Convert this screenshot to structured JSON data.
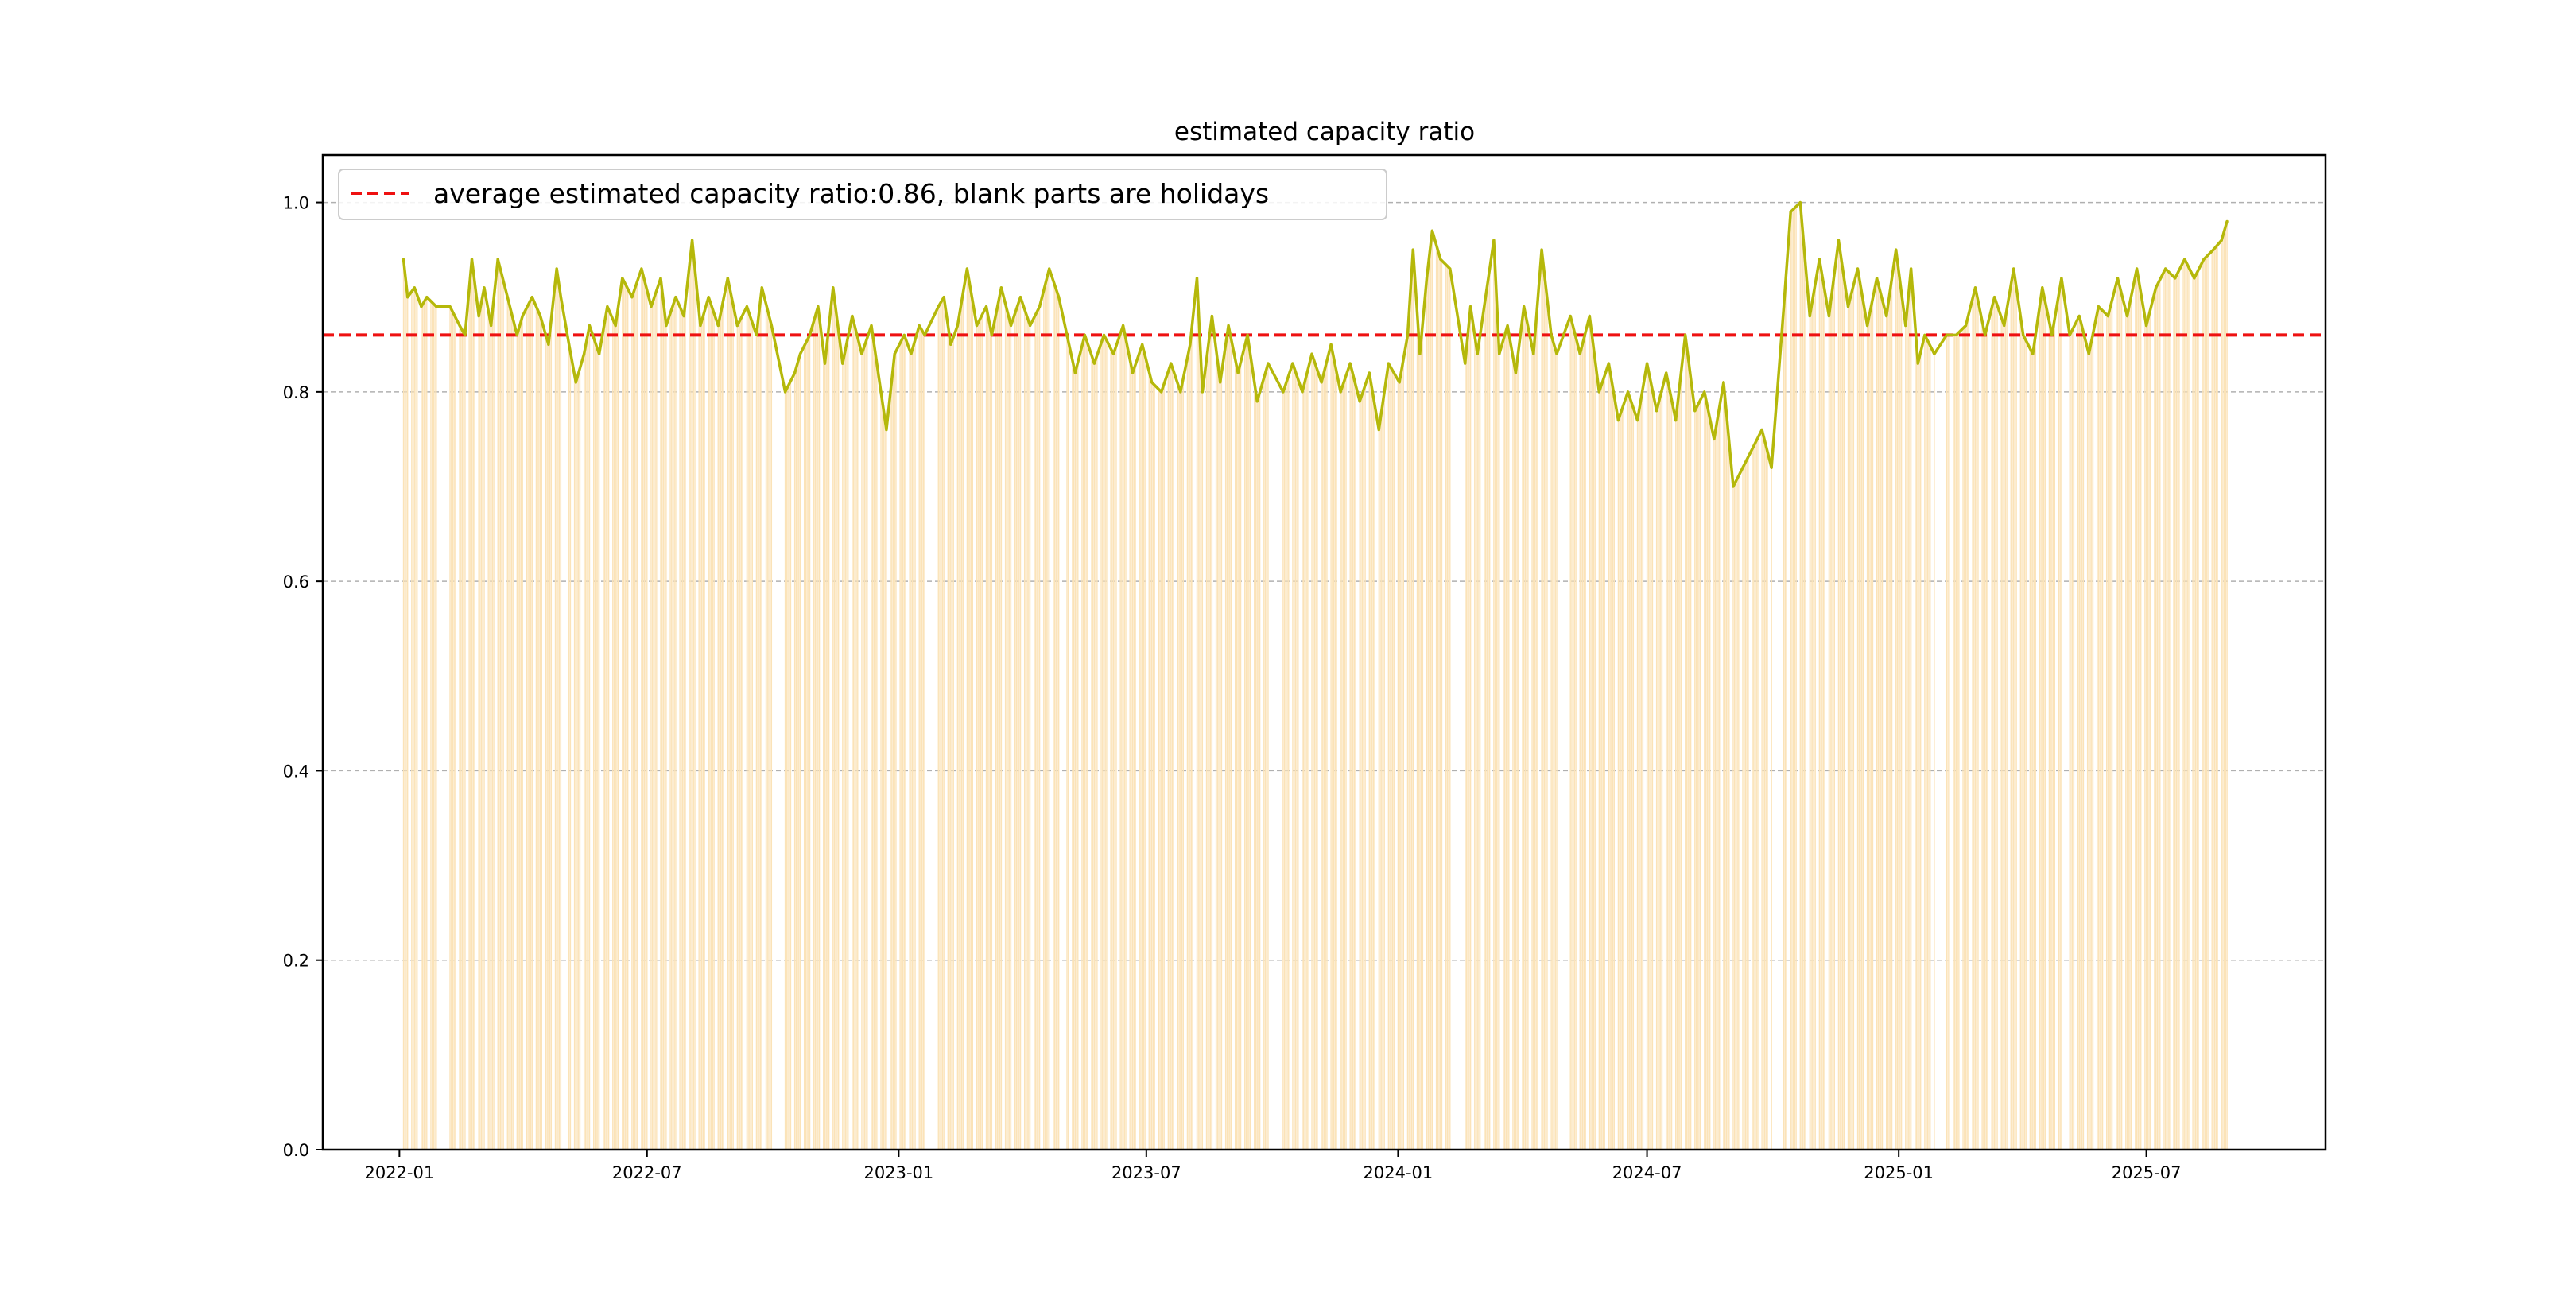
{
  "chart_data": {
    "type": "bar",
    "title": "estimated capacity ratio",
    "xlabel": "",
    "ylabel": "",
    "ylim": [
      0.0,
      1.05
    ],
    "xlim": [
      "2021-11-06",
      "2025-11-09"
    ],
    "grid": {
      "y": true,
      "x": false,
      "style": "dashed"
    },
    "legend_position": "top-left",
    "legend_text": "average estimated capacity ratio:0.86, blank parts are holidays",
    "y_ticks": [
      "0.0",
      "0.2",
      "0.4",
      "0.6",
      "0.8",
      "1.0"
    ],
    "x_ticks": [
      "2022-01",
      "2022-07",
      "2023-01",
      "2023-07",
      "2024-01",
      "2024-07",
      "2025-01",
      "2025-07"
    ],
    "date_range": {
      "start": "2022-01-04",
      "end": "2025-08-29"
    },
    "holiday_gaps": [
      {
        "from": "2022-01-29",
        "to": "2022-02-06"
      },
      {
        "from": "2022-04-30",
        "to": "2022-05-04"
      },
      {
        "from": "2022-10-01",
        "to": "2022-10-09"
      },
      {
        "from": "2023-01-21",
        "to": "2023-01-29"
      },
      {
        "from": "2023-04-29",
        "to": "2023-05-03"
      },
      {
        "from": "2023-09-29",
        "to": "2023-10-08"
      },
      {
        "from": "2024-02-09",
        "to": "2024-02-18"
      },
      {
        "from": "2024-04-29",
        "to": "2024-05-05"
      },
      {
        "from": "2024-10-01",
        "to": "2024-10-08"
      },
      {
        "from": "2025-01-28",
        "to": "2025-02-04"
      },
      {
        "from": "2025-05-01",
        "to": "2025-05-05"
      }
    ],
    "series": [
      {
        "type": "bar",
        "color": "#fbe3b8",
        "values_note": "daily bars each equal to the line value on trading days; absent on holidays"
      },
      {
        "type": "line",
        "color": "#b5b80a",
        "points": [
          [
            "2022-01-04",
            0.94
          ],
          [
            "2022-01-07",
            0.9
          ],
          [
            "2022-01-12",
            0.91
          ],
          [
            "2022-01-17",
            0.89
          ],
          [
            "2022-01-21",
            0.9
          ],
          [
            "2022-01-28",
            0.89
          ],
          [
            "2022-02-07",
            0.89
          ],
          [
            "2022-02-14",
            0.87
          ],
          [
            "2022-02-18",
            0.86
          ],
          [
            "2022-02-23",
            0.94
          ],
          [
            "2022-02-28",
            0.88
          ],
          [
            "2022-03-04",
            0.91
          ],
          [
            "2022-03-09",
            0.87
          ],
          [
            "2022-03-14",
            0.94
          ],
          [
            "2022-03-21",
            0.9
          ],
          [
            "2022-03-28",
            0.86
          ],
          [
            "2022-04-01",
            0.88
          ],
          [
            "2022-04-08",
            0.9
          ],
          [
            "2022-04-14",
            0.88
          ],
          [
            "2022-04-20",
            0.85
          ],
          [
            "2022-04-26",
            0.93
          ],
          [
            "2022-04-29",
            0.9
          ],
          [
            "2022-05-05",
            0.85
          ],
          [
            "2022-05-10",
            0.81
          ],
          [
            "2022-05-16",
            0.84
          ],
          [
            "2022-05-20",
            0.87
          ],
          [
            "2022-05-27",
            0.84
          ],
          [
            "2022-06-02",
            0.89
          ],
          [
            "2022-06-08",
            0.87
          ],
          [
            "2022-06-13",
            0.92
          ],
          [
            "2022-06-20",
            0.9
          ],
          [
            "2022-06-27",
            0.93
          ],
          [
            "2022-07-04",
            0.89
          ],
          [
            "2022-07-11",
            0.92
          ],
          [
            "2022-07-15",
            0.87
          ],
          [
            "2022-07-22",
            0.9
          ],
          [
            "2022-07-28",
            0.88
          ],
          [
            "2022-08-03",
            0.96
          ],
          [
            "2022-08-09",
            0.87
          ],
          [
            "2022-08-15",
            0.9
          ],
          [
            "2022-08-22",
            0.87
          ],
          [
            "2022-08-29",
            0.92
          ],
          [
            "2022-09-05",
            0.87
          ],
          [
            "2022-09-12",
            0.89
          ],
          [
            "2022-09-19",
            0.86
          ],
          [
            "2022-09-23",
            0.91
          ],
          [
            "2022-09-30",
            0.87
          ],
          [
            "2022-10-10",
            0.8
          ],
          [
            "2022-10-17",
            0.82
          ],
          [
            "2022-10-21",
            0.84
          ],
          [
            "2022-10-28",
            0.86
          ],
          [
            "2022-11-03",
            0.89
          ],
          [
            "2022-11-08",
            0.83
          ],
          [
            "2022-11-14",
            0.91
          ],
          [
            "2022-11-21",
            0.83
          ],
          [
            "2022-11-28",
            0.88
          ],
          [
            "2022-12-05",
            0.84
          ],
          [
            "2022-12-12",
            0.87
          ],
          [
            "2022-12-19",
            0.8
          ],
          [
            "2022-12-23",
            0.76
          ],
          [
            "2022-12-29",
            0.84
          ],
          [
            "2023-01-05",
            0.86
          ],
          [
            "2023-01-10",
            0.84
          ],
          [
            "2023-01-16",
            0.87
          ],
          [
            "2023-01-20",
            0.86
          ],
          [
            "2023-01-30",
            0.89
          ],
          [
            "2023-02-03",
            0.9
          ],
          [
            "2023-02-08",
            0.85
          ],
          [
            "2023-02-13",
            0.87
          ],
          [
            "2023-02-20",
            0.93
          ],
          [
            "2023-02-27",
            0.87
          ],
          [
            "2023-03-06",
            0.89
          ],
          [
            "2023-03-10",
            0.86
          ],
          [
            "2023-03-17",
            0.91
          ],
          [
            "2023-03-24",
            0.87
          ],
          [
            "2023-03-31",
            0.9
          ],
          [
            "2023-04-07",
            0.87
          ],
          [
            "2023-04-14",
            0.89
          ],
          [
            "2023-04-21",
            0.93
          ],
          [
            "2023-04-28",
            0.9
          ],
          [
            "2023-05-04",
            0.86
          ],
          [
            "2023-05-10",
            0.82
          ],
          [
            "2023-05-17",
            0.86
          ],
          [
            "2023-05-24",
            0.83
          ],
          [
            "2023-05-31",
            0.86
          ],
          [
            "2023-06-07",
            0.84
          ],
          [
            "2023-06-14",
            0.87
          ],
          [
            "2023-06-21",
            0.82
          ],
          [
            "2023-06-28",
            0.85
          ],
          [
            "2023-07-05",
            0.81
          ],
          [
            "2023-07-12",
            0.8
          ],
          [
            "2023-07-19",
            0.83
          ],
          [
            "2023-07-26",
            0.8
          ],
          [
            "2023-08-02",
            0.85
          ],
          [
            "2023-08-07",
            0.92
          ],
          [
            "2023-08-11",
            0.8
          ],
          [
            "2023-08-18",
            0.88
          ],
          [
            "2023-08-24",
            0.81
          ],
          [
            "2023-08-30",
            0.87
          ],
          [
            "2023-09-06",
            0.82
          ],
          [
            "2023-09-13",
            0.86
          ],
          [
            "2023-09-20",
            0.79
          ],
          [
            "2023-09-28",
            0.83
          ],
          [
            "2023-10-09",
            0.8
          ],
          [
            "2023-10-16",
            0.83
          ],
          [
            "2023-10-23",
            0.8
          ],
          [
            "2023-10-30",
            0.84
          ],
          [
            "2023-11-06",
            0.81
          ],
          [
            "2023-11-13",
            0.85
          ],
          [
            "2023-11-20",
            0.8
          ],
          [
            "2023-11-27",
            0.83
          ],
          [
            "2023-12-04",
            0.79
          ],
          [
            "2023-12-11",
            0.82
          ],
          [
            "2023-12-18",
            0.76
          ],
          [
            "2023-12-25",
            0.83
          ],
          [
            "2024-01-02",
            0.81
          ],
          [
            "2024-01-08",
            0.86
          ],
          [
            "2024-01-12",
            0.95
          ],
          [
            "2024-01-17",
            0.84
          ],
          [
            "2024-01-22",
            0.92
          ],
          [
            "2024-01-26",
            0.97
          ],
          [
            "2024-02-01",
            0.94
          ],
          [
            "2024-02-08",
            0.93
          ],
          [
            "2024-02-19",
            0.83
          ],
          [
            "2024-02-23",
            0.89
          ],
          [
            "2024-02-28",
            0.84
          ],
          [
            "2024-03-05",
            0.9
          ],
          [
            "2024-03-11",
            0.96
          ],
          [
            "2024-03-15",
            0.84
          ],
          [
            "2024-03-21",
            0.87
          ],
          [
            "2024-03-27",
            0.82
          ],
          [
            "2024-04-02",
            0.89
          ],
          [
            "2024-04-09",
            0.84
          ],
          [
            "2024-04-15",
            0.95
          ],
          [
            "2024-04-22",
            0.86
          ],
          [
            "2024-04-26",
            0.84
          ],
          [
            "2024-05-06",
            0.88
          ],
          [
            "2024-05-13",
            0.84
          ],
          [
            "2024-05-20",
            0.88
          ],
          [
            "2024-05-27",
            0.8
          ],
          [
            "2024-06-03",
            0.83
          ],
          [
            "2024-06-10",
            0.77
          ],
          [
            "2024-06-17",
            0.8
          ],
          [
            "2024-06-24",
            0.77
          ],
          [
            "2024-07-01",
            0.83
          ],
          [
            "2024-07-08",
            0.78
          ],
          [
            "2024-07-15",
            0.82
          ],
          [
            "2024-07-22",
            0.77
          ],
          [
            "2024-07-29",
            0.86
          ],
          [
            "2024-08-05",
            0.78
          ],
          [
            "2024-08-12",
            0.8
          ],
          [
            "2024-08-19",
            0.75
          ],
          [
            "2024-08-26",
            0.81
          ],
          [
            "2024-09-02",
            0.7
          ],
          [
            "2024-09-09",
            0.72
          ],
          [
            "2024-09-16",
            0.74
          ],
          [
            "2024-09-23",
            0.76
          ],
          [
            "2024-09-30",
            0.72
          ],
          [
            "2024-10-09",
            0.89
          ],
          [
            "2024-10-14",
            0.99
          ],
          [
            "2024-10-21",
            1.0
          ],
          [
            "2024-10-28",
            0.88
          ],
          [
            "2024-11-04",
            0.94
          ],
          [
            "2024-11-11",
            0.88
          ],
          [
            "2024-11-18",
            0.96
          ],
          [
            "2024-11-25",
            0.89
          ],
          [
            "2024-12-02",
            0.93
          ],
          [
            "2024-12-09",
            0.87
          ],
          [
            "2024-12-16",
            0.92
          ],
          [
            "2024-12-23",
            0.88
          ],
          [
            "2024-12-30",
            0.95
          ],
          [
            "2025-01-06",
            0.87
          ],
          [
            "2025-01-10",
            0.93
          ],
          [
            "2025-01-15",
            0.83
          ],
          [
            "2025-01-20",
            0.86
          ],
          [
            "2025-01-27",
            0.84
          ],
          [
            "2025-02-05",
            0.86
          ],
          [
            "2025-02-12",
            0.86
          ],
          [
            "2025-02-19",
            0.87
          ],
          [
            "2025-02-26",
            0.91
          ],
          [
            "2025-03-05",
            0.86
          ],
          [
            "2025-03-12",
            0.9
          ],
          [
            "2025-03-19",
            0.87
          ],
          [
            "2025-03-26",
            0.93
          ],
          [
            "2025-04-02",
            0.86
          ],
          [
            "2025-04-09",
            0.84
          ],
          [
            "2025-04-16",
            0.91
          ],
          [
            "2025-04-23",
            0.86
          ],
          [
            "2025-04-30",
            0.92
          ],
          [
            "2025-05-06",
            0.86
          ],
          [
            "2025-05-13",
            0.88
          ],
          [
            "2025-05-20",
            0.84
          ],
          [
            "2025-05-27",
            0.89
          ],
          [
            "2025-06-03",
            0.88
          ],
          [
            "2025-06-10",
            0.92
          ],
          [
            "2025-06-17",
            0.88
          ],
          [
            "2025-06-24",
            0.93
          ],
          [
            "2025-07-01",
            0.87
          ],
          [
            "2025-07-08",
            0.91
          ],
          [
            "2025-07-15",
            0.93
          ],
          [
            "2025-07-22",
            0.92
          ],
          [
            "2025-07-29",
            0.94
          ],
          [
            "2025-08-05",
            0.92
          ],
          [
            "2025-08-12",
            0.94
          ],
          [
            "2025-08-19",
            0.95
          ],
          [
            "2025-08-25",
            0.96
          ],
          [
            "2025-08-29",
            0.98
          ]
        ]
      },
      {
        "type": "hline",
        "color": "#ee1111",
        "value": 0.86
      }
    ]
  }
}
